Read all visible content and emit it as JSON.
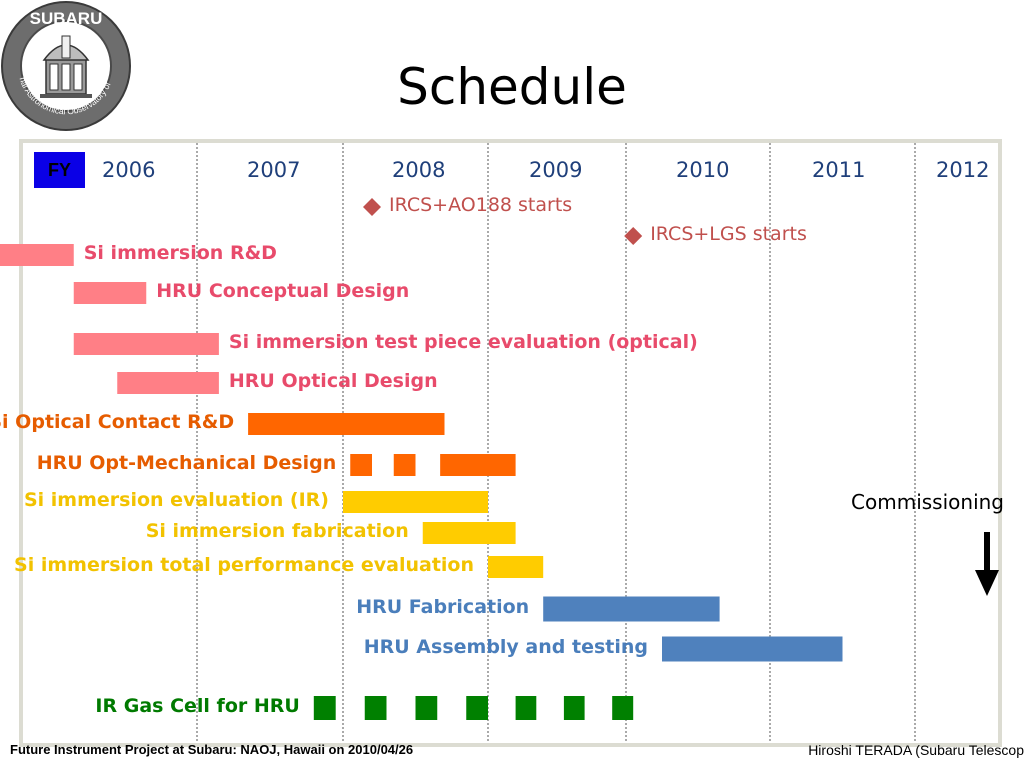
{
  "logo": {
    "top_text": "SUBARU",
    "ring_text": "National Astronomical Observatory of Japan"
  },
  "title": "Schedule",
  "fy_label": "FY",
  "footer": {
    "left": "Future Instrument Project at Subaru: NAOJ, Hawaii on 2010/04/26",
    "right": "Hiroshi TERADA (Subaru Telescop"
  },
  "colors": {
    "pink": "#ff7f86",
    "orange": "#ff6600",
    "yellow": "#ffcc00",
    "blue": "#4f81bd",
    "green": "#008000",
    "milestone": "#c0504d",
    "fy_box": "#0a00e6"
  },
  "chart_data": {
    "type": "gantt",
    "xlabel": "FY",
    "years": [
      "2006",
      "2007",
      "2008",
      "2009",
      "2010",
      "2011",
      "2012"
    ],
    "milestones": [
      {
        "label": "IRCS+AO188 starts",
        "x": 2008.2
      },
      {
        "label": "IRCS+LGS starts",
        "x": 2010.05
      }
    ],
    "tasks": [
      {
        "label": "Si immersion R&D",
        "color": "pink",
        "segments": [
          [
            2005.1,
            2006.15
          ]
        ]
      },
      {
        "label": "HRU Conceptual Design",
        "color": "pink",
        "segments": [
          [
            2006.15,
            2006.65
          ]
        ]
      },
      {
        "label": "Si immersion test piece evaluation (optical)",
        "color": "pink",
        "segments": [
          [
            2006.15,
            2007.15
          ]
        ]
      },
      {
        "label": "HRU Optical Design",
        "color": "pink",
        "segments": [
          [
            2006.45,
            2007.15
          ]
        ]
      },
      {
        "label": "Si Optical Contact R&D",
        "color": "orange",
        "segments": [
          [
            2007.35,
            2008.7
          ]
        ]
      },
      {
        "label": "HRU Opt-Mechanical Design",
        "color": "orange",
        "segments": [
          [
            2008.05,
            2008.2
          ],
          [
            2008.35,
            2008.5
          ],
          [
            2008.67,
            2009.2
          ]
        ]
      },
      {
        "label": "Si immersion evaluation (IR)",
        "color": "yellow",
        "segments": [
          [
            2008.0,
            2009.0
          ]
        ]
      },
      {
        "label": "Si immersion fabrication",
        "color": "yellow",
        "segments": [
          [
            2008.55,
            2009.2
          ]
        ]
      },
      {
        "label": "Si immersion total performance evaluation",
        "color": "yellow",
        "segments": [
          [
            2009.0,
            2009.4
          ]
        ]
      },
      {
        "label": "HRU Fabrication",
        "color": "blue",
        "segments": [
          [
            2009.4,
            2010.65
          ]
        ]
      },
      {
        "label": "HRU Assembly and testing",
        "color": "blue",
        "segments": [
          [
            2010.25,
            2011.5
          ]
        ]
      },
      {
        "label": "IR Gas Cell for HRU",
        "color": "green",
        "segments": [
          [
            2007.8,
            2007.95
          ],
          [
            2008.15,
            2008.3
          ],
          [
            2008.5,
            2008.65
          ],
          [
            2008.85,
            2009.0
          ],
          [
            2009.2,
            2009.35
          ],
          [
            2009.55,
            2009.7
          ],
          [
            2009.9,
            2010.05
          ]
        ]
      }
    ],
    "annotations": [
      {
        "label": "Commissioning",
        "x": 2011.5
      }
    ]
  }
}
